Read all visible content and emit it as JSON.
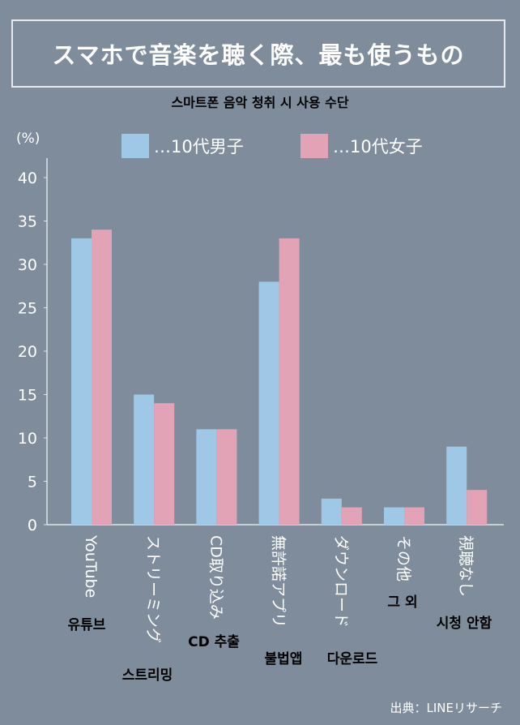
{
  "header": {
    "title": "スマホで音楽を聴く際、最も使うもの",
    "subtitle_ko": "스마트폰 음악 청취 시 사용 수단"
  },
  "source": "出典：LINEリサーチ",
  "colors": {
    "background": "#7e8c9c",
    "male": "#9fc8e6",
    "female": "#e3a3b6",
    "axis": "#dfe3e8",
    "text": "#ffffff",
    "korean_label": "#000000"
  },
  "chart_data": {
    "type": "bar",
    "title": "スマホで音楽を聴く際、最も使うもの",
    "ylabel": "(%)",
    "ylim": [
      0,
      40
    ],
    "yticks": [
      0,
      5,
      10,
      15,
      20,
      25,
      30,
      35,
      40
    ],
    "grid": false,
    "legend_position": "top",
    "categories": [
      "YouTube",
      "ストリーミング",
      "CD取り込み",
      "無許諾アプリ",
      "ダウンロード",
      "その他",
      "視聴なし"
    ],
    "categories_ko": [
      "유튜브",
      "스트리밍",
      "CD 추출",
      "불법앱",
      "다운로드",
      "그 외",
      "시청 안함"
    ],
    "series": [
      {
        "name": "…10代男子",
        "values": [
          33,
          15,
          11,
          28,
          3,
          2,
          9
        ]
      },
      {
        "name": "…10代女子",
        "values": [
          34,
          14,
          11,
          33,
          2,
          2,
          4
        ]
      }
    ]
  }
}
